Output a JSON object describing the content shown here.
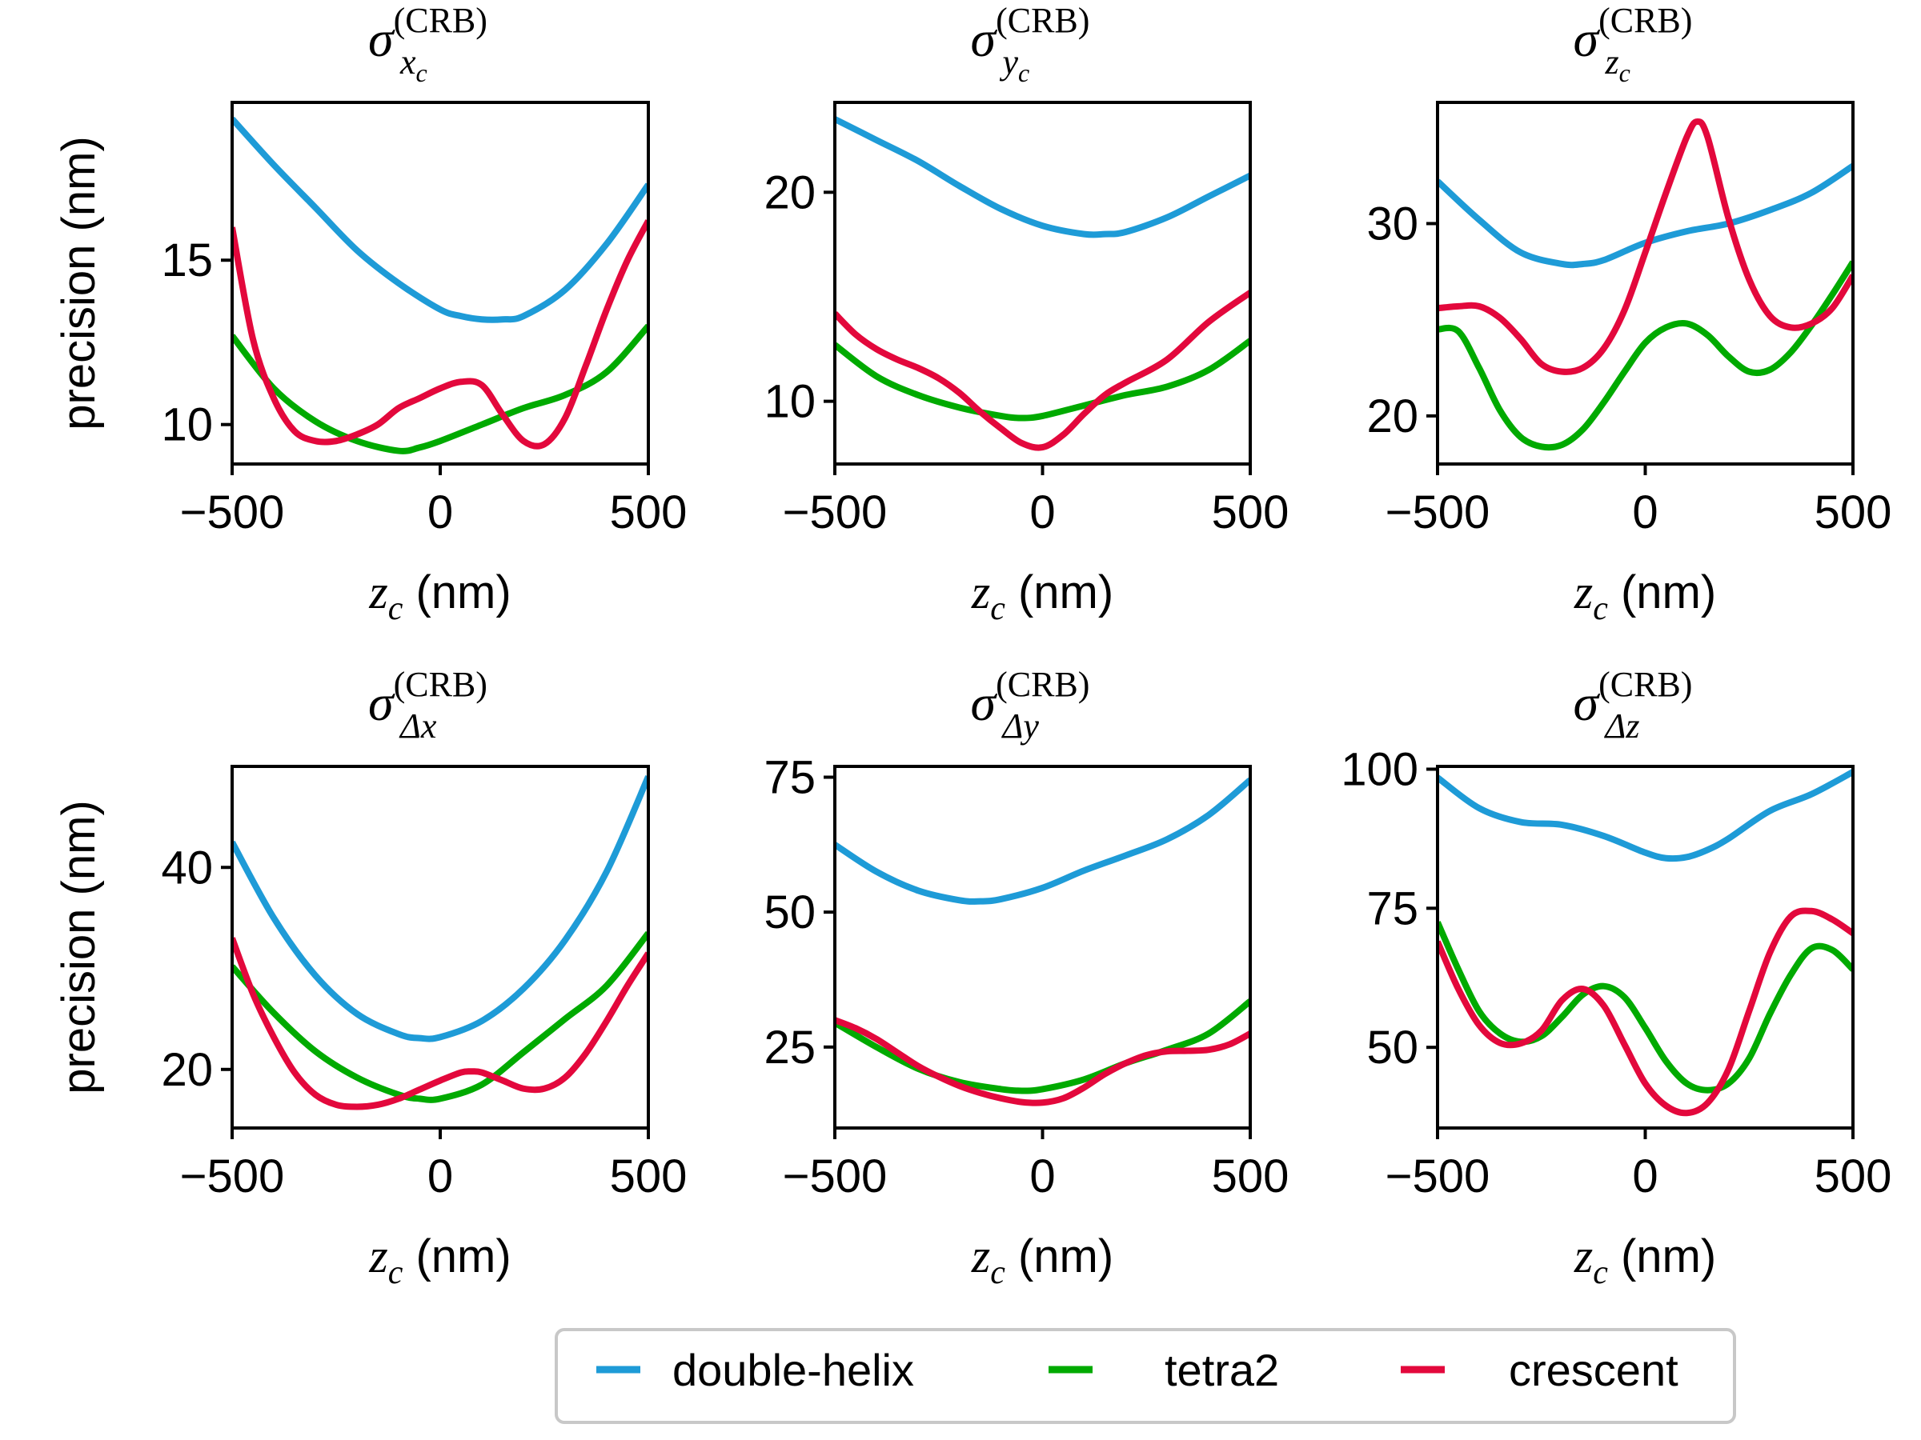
{
  "chart_data": [
    {
      "type": "line",
      "title": {
        "symbol": "σ",
        "subscript": "x",
        "subscript_sub": "c",
        "superscript": "(CRB)"
      },
      "xlabel": {
        "var": "z",
        "sub": "c",
        "unit": "(nm)"
      },
      "ylabel": "precision (nm)",
      "xlim": [
        -500,
        500
      ],
      "ylim": [
        8.8,
        19.8
      ],
      "xticks": [
        -500,
        0,
        500
      ],
      "yticks": [
        10,
        15
      ],
      "series": [
        {
          "name": "double-helix",
          "x": [
            -500,
            -400,
            -300,
            -200,
            -100,
            0,
            50,
            100,
            150,
            200,
            300,
            400,
            500
          ],
          "y": [
            19.3,
            17.9,
            16.6,
            15.3,
            14.3,
            13.5,
            13.3,
            13.2,
            13.2,
            13.3,
            14.1,
            15.5,
            17.3
          ]
        },
        {
          "name": "tetra2",
          "x": [
            -500,
            -400,
            -300,
            -200,
            -100,
            -50,
            0,
            100,
            200,
            300,
            400,
            500
          ],
          "y": [
            12.7,
            11.1,
            10.1,
            9.5,
            9.2,
            9.3,
            9.5,
            10.0,
            10.5,
            10.9,
            11.6,
            13.0
          ]
        },
        {
          "name": "crescent",
          "x": [
            -500,
            -450,
            -400,
            -350,
            -300,
            -250,
            -200,
            -150,
            -100,
            -50,
            0,
            50,
            100,
            150,
            200,
            250,
            300,
            350,
            400,
            450,
            500
          ],
          "y": [
            16.0,
            12.6,
            10.8,
            9.8,
            9.5,
            9.5,
            9.7,
            10.0,
            10.5,
            10.8,
            11.1,
            11.3,
            11.2,
            10.3,
            9.5,
            9.4,
            10.2,
            11.8,
            13.5,
            15.0,
            16.2
          ]
        }
      ]
    },
    {
      "type": "line",
      "title": {
        "symbol": "σ",
        "subscript": "y",
        "subscript_sub": "c",
        "superscript": "(CRB)"
      },
      "xlabel": {
        "var": "z",
        "sub": "c",
        "unit": "(nm)"
      },
      "ylabel": "",
      "xlim": [
        -500,
        500
      ],
      "ylim": [
        7.0,
        24.3
      ],
      "xticks": [
        -500,
        0,
        500
      ],
      "yticks": [
        10,
        20
      ],
      "series": [
        {
          "name": "double-helix",
          "x": [
            -500,
            -400,
            -300,
            -200,
            -100,
            0,
            100,
            150,
            200,
            300,
            400,
            500
          ],
          "y": [
            23.5,
            22.5,
            21.5,
            20.3,
            19.2,
            18.4,
            18.0,
            18.0,
            18.1,
            18.8,
            19.8,
            20.8
          ]
        },
        {
          "name": "tetra2",
          "x": [
            -500,
            -400,
            -300,
            -200,
            -100,
            -50,
            0,
            100,
            200,
            300,
            400,
            500
          ],
          "y": [
            12.7,
            11.2,
            10.3,
            9.7,
            9.3,
            9.2,
            9.3,
            9.8,
            10.3,
            10.7,
            11.5,
            12.9
          ]
        },
        {
          "name": "crescent",
          "x": [
            -500,
            -450,
            -400,
            -350,
            -300,
            -250,
            -200,
            -150,
            -100,
            -50,
            0,
            50,
            100,
            150,
            200,
            300,
            400,
            500
          ],
          "y": [
            14.2,
            13.2,
            12.5,
            12.0,
            11.6,
            11.1,
            10.4,
            9.5,
            8.7,
            8.0,
            7.8,
            8.4,
            9.4,
            10.3,
            10.9,
            12.0,
            13.8,
            15.2
          ]
        }
      ]
    },
    {
      "type": "line",
      "title": {
        "symbol": "σ",
        "subscript": "z",
        "subscript_sub": "c",
        "superscript": "(CRB)"
      },
      "xlabel": {
        "var": "z",
        "sub": "c",
        "unit": "(nm)"
      },
      "ylabel": "",
      "xlim": [
        -500,
        500
      ],
      "ylim": [
        17.5,
        36.3
      ],
      "xticks": [
        -500,
        0,
        500
      ],
      "yticks": [
        20,
        30
      ],
      "series": [
        {
          "name": "double-helix",
          "x": [
            -500,
            -400,
            -300,
            -200,
            -150,
            -100,
            0,
            100,
            200,
            300,
            400,
            500
          ],
          "y": [
            32.2,
            30.2,
            28.5,
            27.9,
            27.9,
            28.1,
            29.0,
            29.6,
            30.0,
            30.7,
            31.6,
            33.0
          ]
        },
        {
          "name": "tetra2",
          "x": [
            -500,
            -450,
            -400,
            -350,
            -300,
            -250,
            -200,
            -150,
            -100,
            -50,
            0,
            50,
            100,
            150,
            200,
            250,
            300,
            350,
            400,
            450,
            500
          ],
          "y": [
            24.5,
            24.4,
            22.5,
            20.3,
            18.9,
            18.4,
            18.5,
            19.3,
            20.7,
            22.3,
            23.8,
            24.6,
            24.8,
            24.2,
            23.1,
            22.3,
            22.4,
            23.3,
            24.7,
            26.3,
            28.0
          ]
        },
        {
          "name": "crescent",
          "x": [
            -500,
            -450,
            -400,
            -350,
            -300,
            -250,
            -200,
            -150,
            -100,
            -50,
            0,
            50,
            100,
            125,
            150,
            200,
            250,
            300,
            350,
            400,
            450,
            500
          ],
          "y": [
            25.6,
            25.7,
            25.7,
            25.1,
            24.0,
            22.7,
            22.3,
            22.5,
            23.5,
            25.5,
            28.5,
            31.6,
            34.5,
            35.3,
            34.5,
            30.3,
            27.1,
            25.2,
            24.6,
            24.8,
            25.6,
            27.3
          ]
        }
      ]
    },
    {
      "type": "line",
      "title": {
        "symbol": "σ",
        "subscript": "Δx",
        "subscript_sub": "",
        "superscript": "(CRB)"
      },
      "xlabel": {
        "var": "z",
        "sub": "c",
        "unit": "(nm)"
      },
      "ylabel": "precision (nm)",
      "xlim": [
        -500,
        500
      ],
      "ylim": [
        14.2,
        50.0
      ],
      "xticks": [
        -500,
        0,
        500
      ],
      "yticks": [
        20,
        40
      ],
      "series": [
        {
          "name": "double-helix",
          "x": [
            -500,
            -400,
            -300,
            -200,
            -100,
            -50,
            0,
            100,
            200,
            300,
            400,
            500
          ],
          "y": [
            42.5,
            35.0,
            29.3,
            25.5,
            23.5,
            23.1,
            23.2,
            24.8,
            28.0,
            32.8,
            39.6,
            49.0
          ]
        },
        {
          "name": "tetra2",
          "x": [
            -500,
            -400,
            -300,
            -200,
            -100,
            -50,
            0,
            100,
            200,
            300,
            400,
            500
          ],
          "y": [
            30.2,
            25.6,
            21.8,
            19.2,
            17.5,
            17.1,
            17.1,
            18.5,
            21.7,
            25.0,
            28.3,
            33.5
          ]
        },
        {
          "name": "crescent",
          "x": [
            -500,
            -450,
            -400,
            -350,
            -300,
            -250,
            -200,
            -150,
            -100,
            -50,
            0,
            50,
            75,
            100,
            150,
            200,
            250,
            300,
            350,
            400,
            450,
            500
          ],
          "y": [
            33.0,
            27.5,
            23.2,
            19.7,
            17.5,
            16.5,
            16.3,
            16.5,
            17.1,
            18.0,
            18.9,
            19.7,
            19.8,
            19.7,
            18.9,
            18.1,
            18.1,
            19.2,
            21.6,
            24.8,
            28.3,
            31.5
          ]
        }
      ]
    },
    {
      "type": "line",
      "title": {
        "symbol": "σ",
        "subscript": "Δy",
        "subscript_sub": "",
        "superscript": "(CRB)"
      },
      "xlabel": {
        "var": "z",
        "sub": "c",
        "unit": "(nm)"
      },
      "ylabel": "",
      "xlim": [
        -500,
        500
      ],
      "ylim": [
        10.0,
        77.0
      ],
      "xticks": [
        -500,
        0,
        500
      ],
      "yticks": [
        25,
        50,
        75
      ],
      "series": [
        {
          "name": "double-helix",
          "x": [
            -500,
            -400,
            -300,
            -200,
            -150,
            -100,
            0,
            100,
            200,
            300,
            400,
            500
          ],
          "y": [
            62.5,
            57.5,
            54.0,
            52.2,
            52.0,
            52.4,
            54.5,
            57.7,
            60.5,
            63.5,
            68.0,
            74.5
          ]
        },
        {
          "name": "tetra2",
          "x": [
            -500,
            -400,
            -300,
            -200,
            -100,
            -50,
            0,
            100,
            200,
            300,
            400,
            500
          ],
          "y": [
            29.5,
            25.0,
            21.0,
            18.5,
            17.2,
            16.9,
            17.2,
            19.0,
            22.0,
            24.5,
            27.5,
            33.5
          ]
        },
        {
          "name": "crescent",
          "x": [
            -500,
            -450,
            -400,
            -350,
            -300,
            -250,
            -200,
            -150,
            -100,
            -50,
            0,
            50,
            100,
            150,
            200,
            250,
            300,
            350,
            400,
            450,
            500
          ],
          "y": [
            30.0,
            28.5,
            26.5,
            24.0,
            21.5,
            19.5,
            17.8,
            16.5,
            15.5,
            14.8,
            14.7,
            15.5,
            17.5,
            20.0,
            22.0,
            23.5,
            24.2,
            24.3,
            24.5,
            25.5,
            27.5
          ]
        }
      ]
    },
    {
      "type": "line",
      "title": {
        "symbol": "σ",
        "subscript": "Δz",
        "subscript_sub": "",
        "superscript": "(CRB)"
      },
      "xlabel": {
        "var": "z",
        "sub": "c",
        "unit": "(nm)"
      },
      "ylabel": "",
      "xlim": [
        -500,
        500
      ],
      "ylim": [
        35.5,
        100.5
      ],
      "xticks": [
        -500,
        0,
        500
      ],
      "yticks": [
        50,
        75,
        100
      ],
      "series": [
        {
          "name": "double-helix",
          "x": [
            -500,
            -400,
            -300,
            -200,
            -100,
            0,
            50,
            100,
            150,
            200,
            300,
            400,
            500
          ],
          "y": [
            98.5,
            93.0,
            90.5,
            90.0,
            88.0,
            85.0,
            84.0,
            84.2,
            85.5,
            87.5,
            92.5,
            95.5,
            99.5
          ]
        },
        {
          "name": "tetra2",
          "x": [
            -500,
            -450,
            -400,
            -350,
            -300,
            -250,
            -200,
            -150,
            -100,
            -50,
            0,
            50,
            100,
            150,
            200,
            250,
            300,
            350,
            400,
            450,
            500
          ],
          "y": [
            72.5,
            64.0,
            56.5,
            52.5,
            51.0,
            52.0,
            55.5,
            59.5,
            61.0,
            59.0,
            53.5,
            47.5,
            43.5,
            42.3,
            43.5,
            48.0,
            56.0,
            63.0,
            67.8,
            67.5,
            64.0
          ]
        },
        {
          "name": "crescent",
          "x": [
            -500,
            -450,
            -400,
            -350,
            -300,
            -250,
            -200,
            -150,
            -100,
            -50,
            0,
            50,
            100,
            150,
            200,
            250,
            300,
            350,
            400,
            450,
            500
          ],
          "y": [
            69.0,
            60.5,
            54.0,
            50.8,
            50.7,
            53.0,
            58.5,
            60.5,
            57.5,
            50.5,
            43.5,
            39.5,
            38.2,
            40.0,
            46.0,
            56.5,
            67.0,
            73.5,
            74.5,
            73.0,
            70.5
          ]
        }
      ]
    }
  ],
  "legend": {
    "placement": "bottom-center",
    "entries": [
      {
        "label": "double-helix",
        "color": "#1E9BD7"
      },
      {
        "label": "tetra2",
        "color": "#00AA00"
      },
      {
        "label": "crescent",
        "color": "#E3083C"
      }
    ]
  },
  "colors": {
    "double-helix": "#1E9BD7",
    "tetra2": "#00AA00",
    "crescent": "#E3083C",
    "axes": "#000000"
  }
}
